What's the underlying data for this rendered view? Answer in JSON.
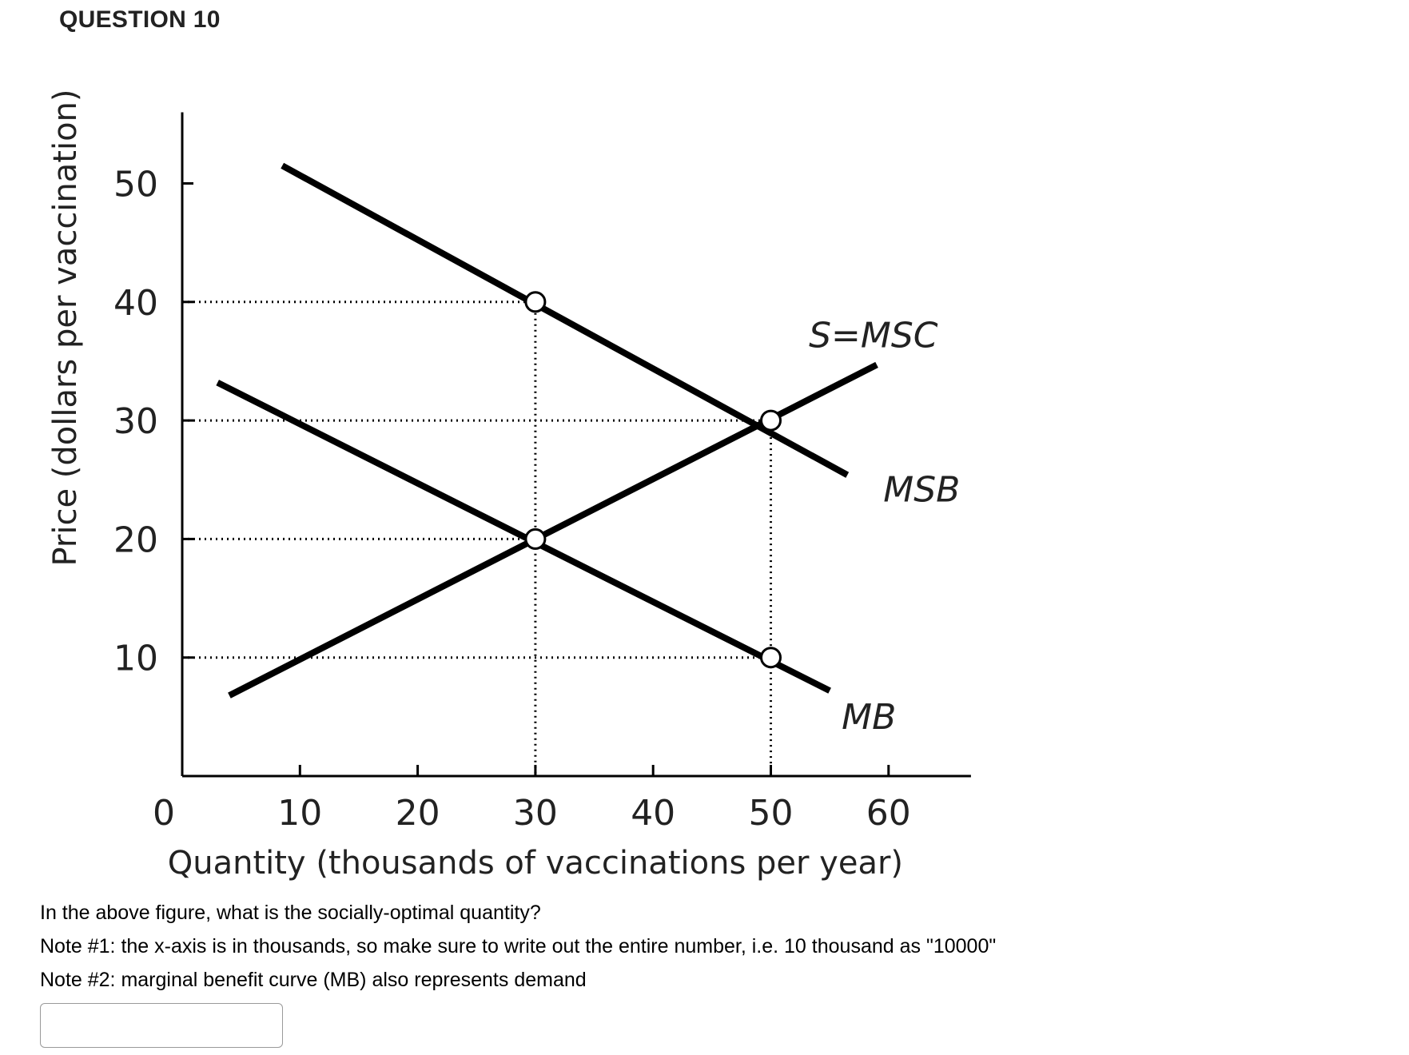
{
  "question": {
    "header": "QUESTION 10",
    "prompt": "In the above figure, what is the socially-optimal quantity?",
    "note1": "Note #1: the x-axis is in thousands, so make sure to write out the entire number, i.e. 10 thousand as \"10000\"",
    "note2": "Note #2: marginal benefit curve (MB) also represents demand",
    "answer_value": ""
  },
  "chart_data": {
    "type": "line",
    "xlabel": "Quantity (thousands of vaccinations per year)",
    "ylabel": "Price (dollars per vaccination)",
    "xlim": [
      0,
      67
    ],
    "ylim": [
      0,
      56
    ],
    "origin_label": "0",
    "x_ticks": [
      10,
      20,
      30,
      40,
      50,
      60
    ],
    "y_ticks": [
      10,
      20,
      30,
      40,
      50
    ],
    "series": [
      {
        "name": "S=MSC",
        "x": [
          4,
          59
        ],
        "y": [
          6.8,
          34.7
        ]
      },
      {
        "name": "MSB",
        "x": [
          8.5,
          56.5
        ],
        "y": [
          51.5,
          25.4
        ]
      },
      {
        "name": "MB",
        "x": [
          3,
          55
        ],
        "y": [
          33.2,
          7.2
        ]
      }
    ],
    "points": [
      {
        "x": 30,
        "y": 40
      },
      {
        "x": 30,
        "y": 20
      },
      {
        "x": 50,
        "y": 30
      },
      {
        "x": 50,
        "y": 10
      }
    ],
    "guides": {
      "horizontal": [
        {
          "y": 40,
          "to_x": 30
        },
        {
          "y": 30,
          "to_x": 50
        },
        {
          "y": 20,
          "to_x": 30
        },
        {
          "y": 10,
          "to_x": 50
        }
      ],
      "vertical": [
        {
          "x": 30,
          "from_y": 40
        },
        {
          "x": 50,
          "from_y": 30
        }
      ]
    }
  }
}
